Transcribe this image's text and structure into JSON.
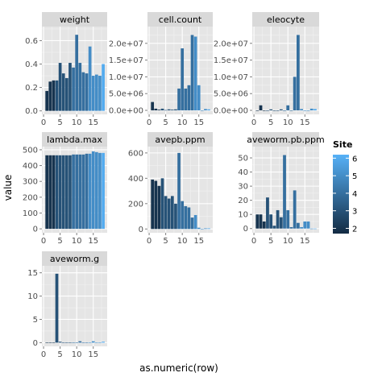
{
  "chart_data": {
    "type": "bar",
    "faceted": true,
    "xlabel": "as.numeric(row)",
    "ylabel": "value",
    "legend": {
      "title": "Site",
      "position": "right",
      "ticks": [
        "6",
        "5",
        "4",
        "3",
        "2"
      ],
      "min": 1.7,
      "max": 6.2,
      "color_low": "#132B43",
      "color_high": "#56B1F7"
    },
    "x_ticks": [
      0,
      5,
      10,
      15
    ],
    "xlim": [
      -0.5,
      19.2
    ],
    "site": [
      2,
      2,
      2,
      3,
      3,
      3,
      3,
      3,
      4,
      4,
      4,
      4,
      4,
      5,
      5,
      5,
      5,
      6
    ],
    "panels": [
      {
        "title": "weight",
        "ylim": [
          -0.03,
          0.72
        ],
        "y_ticks": [
          0,
          0.2,
          0.4,
          0.6
        ],
        "y_tick_labels": [
          "0.0",
          "0.2",
          "0.4",
          "0.6"
        ],
        "values": [
          0.17,
          0.25,
          0.26,
          0.26,
          0.41,
          0.32,
          0.28,
          0.41,
          0.37,
          0.65,
          0.41,
          0.33,
          0.32,
          0.55,
          0.3,
          0.31,
          0.3,
          0.4
        ]
      },
      {
        "title": "cell.count",
        "ylim": [
          -1200000,
          25000000
        ],
        "y_ticks": [
          0,
          5000000,
          10000000,
          15000000,
          20000000
        ],
        "y_tick_labels": [
          "0.0e+00",
          "5.0e+06",
          "1.0e+07",
          "1.5e+07",
          "2.0e+07"
        ],
        "values": [
          2500000,
          500000,
          200000,
          500000,
          100000,
          300000,
          200000,
          300000,
          6500000,
          18500000,
          6500000,
          7500000,
          22500000,
          22000000,
          7500000,
          0,
          400000,
          300000
        ]
      },
      {
        "title": "eleocyte",
        "ylim": [
          -1200000,
          25000000
        ],
        "y_ticks": [
          0,
          5000000,
          10000000,
          15000000,
          20000000
        ],
        "y_tick_labels": [
          "0.0e+00",
          "5.0e+06",
          "1.0e+07",
          "1.5e+07",
          "2.0e+07"
        ],
        "values": [
          0,
          1500000,
          0,
          0,
          300000,
          0,
          0,
          300000,
          0,
          1500000,
          0,
          10000000,
          22500000,
          400000,
          0,
          0,
          500000,
          400000
        ]
      },
      {
        "title": "lambda.max",
        "ylim": [
          -25,
          520
        ],
        "y_ticks": [
          0,
          100,
          200,
          300,
          400,
          500
        ],
        "y_tick_labels": [
          "0",
          "100",
          "200",
          "300",
          "400",
          "500"
        ],
        "values": [
          465,
          465,
          465,
          465,
          465,
          465,
          465,
          465,
          470,
          470,
          470,
          470,
          475,
          475,
          490,
          485,
          480,
          480
        ]
      },
      {
        "title": "avepb.ppm",
        "ylim": [
          -30,
          650
        ],
        "y_ticks": [
          0,
          200,
          400,
          600
        ],
        "y_tick_labels": [
          "0",
          "200",
          "400",
          "600"
        ],
        "values": [
          390,
          380,
          340,
          400,
          260,
          240,
          260,
          200,
          600,
          220,
          180,
          170,
          90,
          110,
          10,
          0,
          5,
          5
        ]
      },
      {
        "title": "aveworm.pb.ppm",
        "ylim": [
          -3,
          58
        ],
        "y_ticks": [
          0,
          10,
          20,
          30,
          40,
          50
        ],
        "y_tick_labels": [
          "0",
          "10",
          "20",
          "30",
          "40",
          "50"
        ],
        "values": [
          10,
          10,
          5,
          22,
          10,
          2,
          13,
          8,
          52,
          13,
          1,
          27,
          4,
          1,
          5,
          5,
          0,
          0
        ]
      },
      {
        "title": "aveworm.g",
        "ylim": [
          -0.8,
          16.5
        ],
        "y_ticks": [
          0,
          5,
          10,
          15
        ],
        "y_tick_labels": [
          "0",
          "5",
          "10",
          "15"
        ],
        "values": [
          0,
          0,
          0,
          14.8,
          0.2,
          0,
          0,
          0,
          0,
          0,
          0.3,
          0,
          0,
          0,
          0.3,
          0,
          0,
          0.2
        ]
      }
    ]
  }
}
